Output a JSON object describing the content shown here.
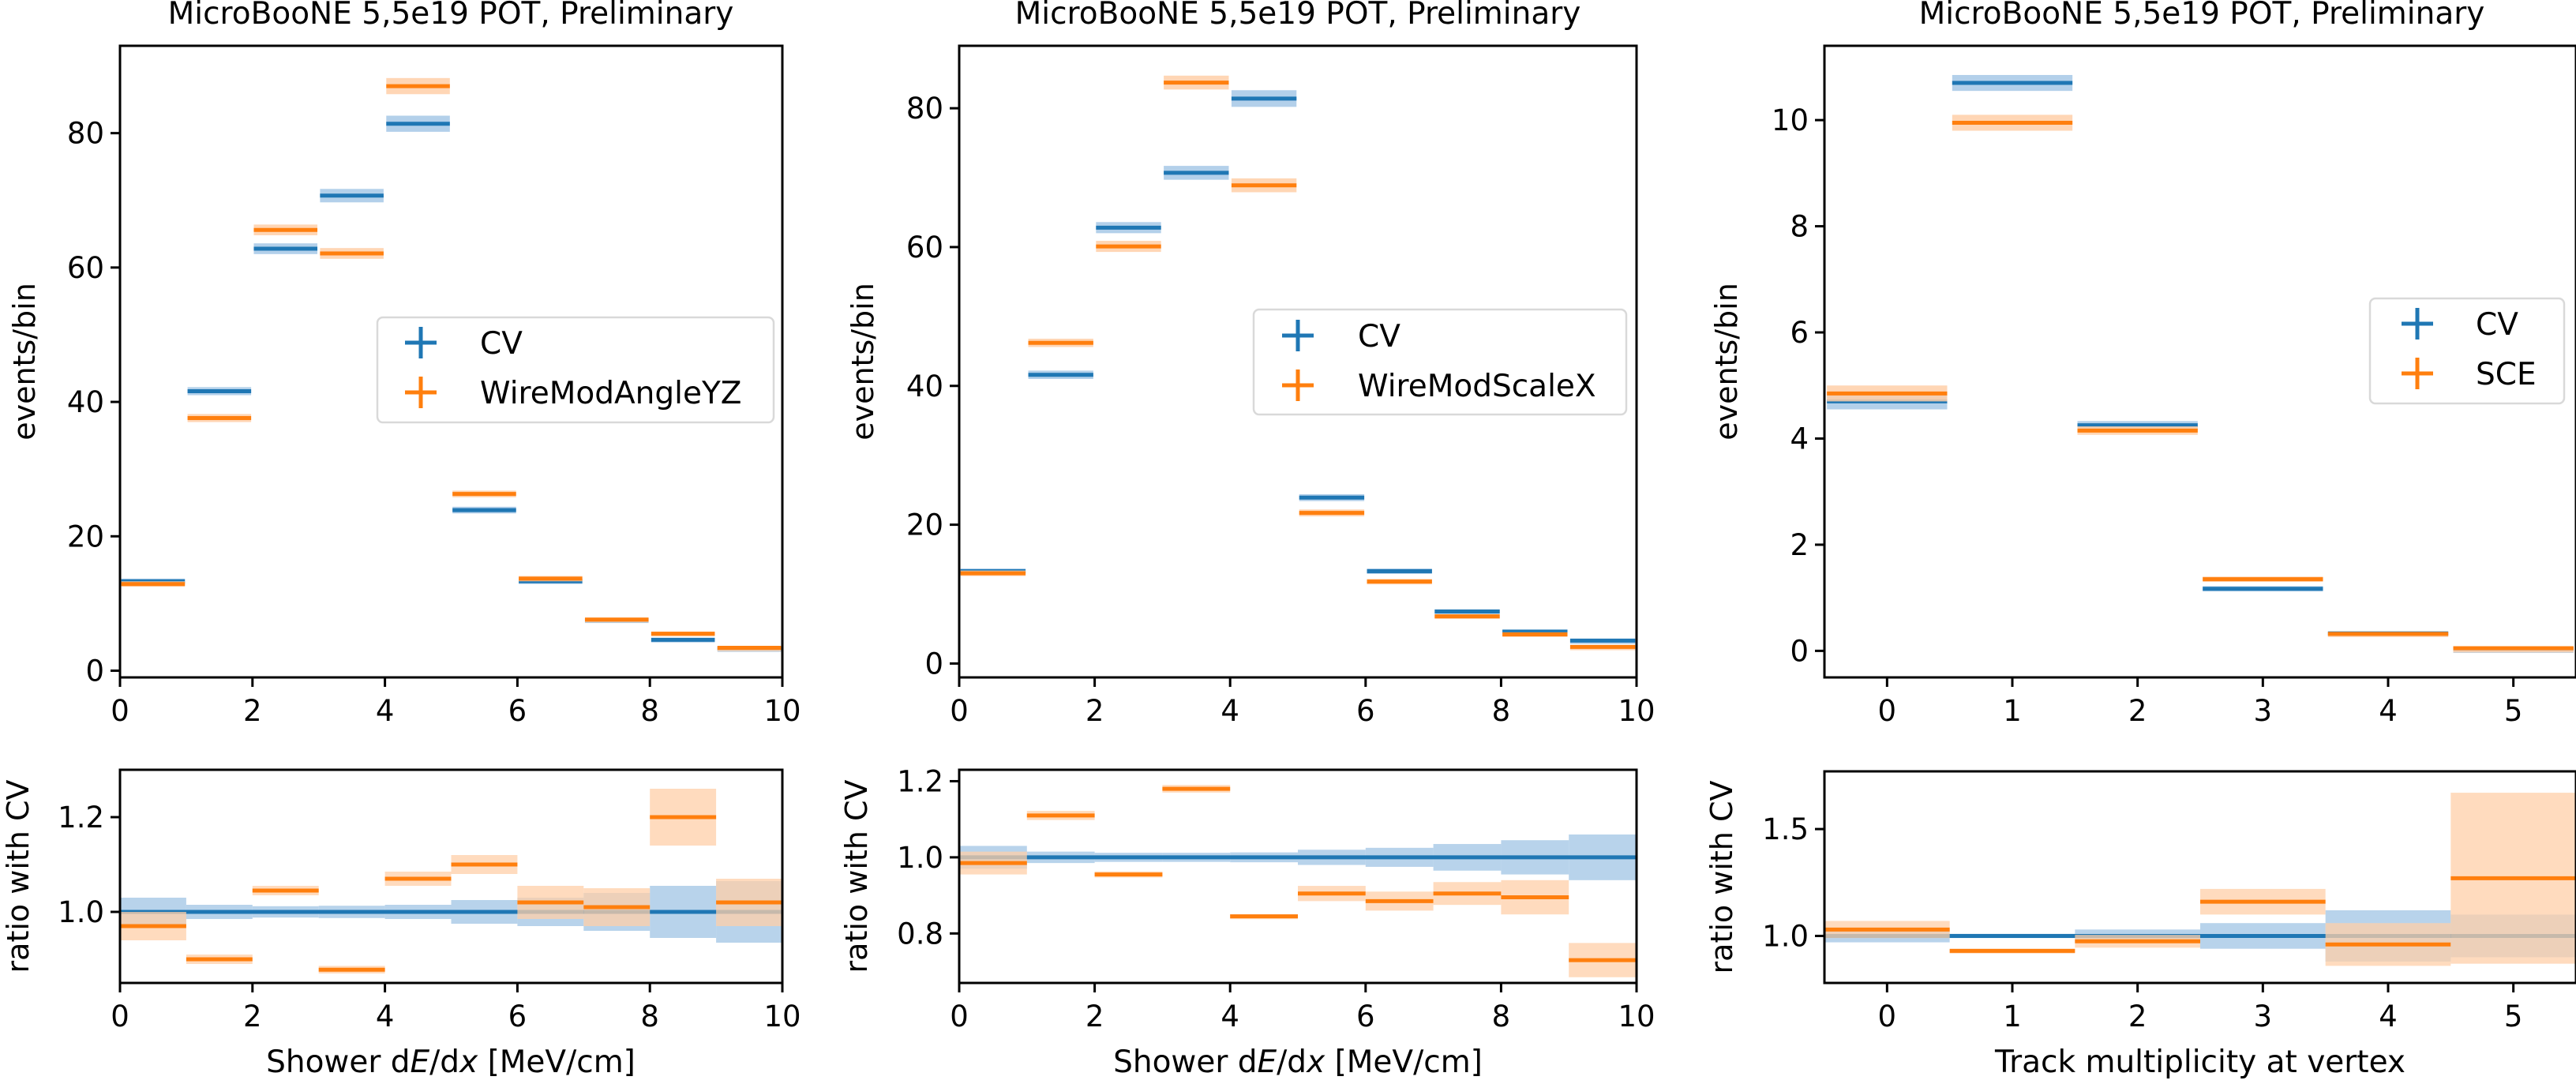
{
  "figure": {
    "panels": [
      {
        "title": "MicroBooNE 5,5e19 POT, Preliminary",
        "legend": [
          "CV",
          "WireModAngleYZ"
        ],
        "xlabel": "Shower dE/dx [MeV/cm]"
      },
      {
        "title": "MicroBooNE 5,5e19 POT, Preliminary",
        "legend": [
          "CV",
          "WireModScaleX"
        ],
        "xlabel": "Shower dE/dx [MeV/cm]"
      },
      {
        "title": "MicroBooNE 5,5e19 POT, Preliminary",
        "legend": [
          "CV",
          "SCE"
        ],
        "xlabel": "Track multiplicity at vertex"
      }
    ],
    "colors": {
      "cv": "#1f77b4",
      "variation": "#ff7f0e",
      "cv_band": "#a6c8e6",
      "variation_band": "#ffcfa8"
    }
  },
  "chart_data": [
    {
      "type": "histogram",
      "title": "MicroBooNE 5,5e19 POT, Preliminary",
      "xlabel": "Shower dE/dx [MeV/cm]",
      "ylabel": "events/bin",
      "bin_edges": [
        0,
        1,
        2,
        3,
        4,
        5,
        6,
        7,
        8,
        9,
        10
      ],
      "xlim": [
        0,
        10
      ],
      "ylim": [
        -1,
        93
      ],
      "xticks": [
        0,
        2,
        4,
        6,
        8,
        10
      ],
      "yticks": [
        0,
        20,
        40,
        60,
        80
      ],
      "legend_position": "center-right",
      "series": [
        {
          "name": "CV",
          "values": [
            13.3,
            41.6,
            62.8,
            70.7,
            81.4,
            23.9,
            13.3,
            7.5,
            4.6,
            3.3
          ],
          "errors": [
            0.4,
            0.6,
            0.8,
            1.0,
            1.2,
            0.5,
            0.4,
            0.3,
            0.3,
            0.2
          ]
        },
        {
          "name": "WireModAngleYZ",
          "values": [
            12.9,
            37.6,
            65.6,
            62.1,
            87.0,
            26.3,
            13.7,
            7.6,
            5.5,
            3.4
          ],
          "errors": [
            0.4,
            0.6,
            0.8,
            0.8,
            1.2,
            0.5,
            0.4,
            0.3,
            0.3,
            0.2
          ]
        }
      ],
      "ratio": {
        "ylabel": "ratio with CV",
        "ylim": [
          0.85,
          1.3
        ],
        "yticks": [
          1.0,
          1.2
        ],
        "cv_band": [
          0.03,
          0.015,
          0.012,
          0.013,
          0.015,
          0.025,
          0.03,
          0.04,
          0.055,
          0.065
        ],
        "values": [
          0.97,
          0.9,
          1.045,
          0.878,
          1.07,
          1.1,
          1.02,
          1.01,
          1.2,
          1.02
        ],
        "errors": [
          0.03,
          0.01,
          0.01,
          0.008,
          0.015,
          0.02,
          0.035,
          0.04,
          0.06,
          0.05
        ]
      }
    },
    {
      "type": "histogram",
      "title": "MicroBooNE 5,5e19 POT, Preliminary",
      "xlabel": "Shower dE/dx [MeV/cm]",
      "ylabel": "events/bin",
      "bin_edges": [
        0,
        1,
        2,
        3,
        4,
        5,
        6,
        7,
        8,
        9,
        10
      ],
      "xlim": [
        0,
        10
      ],
      "ylim": [
        -2,
        89
      ],
      "xticks": [
        0,
        2,
        4,
        6,
        8,
        10
      ],
      "yticks": [
        0,
        20,
        40,
        60,
        80
      ],
      "legend_position": "center-right",
      "series": [
        {
          "name": "CV",
          "values": [
            13.3,
            41.6,
            62.8,
            70.7,
            81.4,
            23.9,
            13.3,
            7.5,
            4.6,
            3.3
          ],
          "errors": [
            0.4,
            0.6,
            0.8,
            1.0,
            1.2,
            0.5,
            0.4,
            0.3,
            0.3,
            0.2
          ]
        },
        {
          "name": "WireModScaleX",
          "values": [
            13.0,
            46.2,
            60.1,
            83.7,
            68.9,
            21.7,
            11.8,
            6.8,
            4.2,
            2.4
          ],
          "errors": [
            0.4,
            0.6,
            0.8,
            1.0,
            1.0,
            0.5,
            0.4,
            0.3,
            0.3,
            0.2
          ]
        }
      ],
      "ratio": {
        "ylabel": "ratio with CV",
        "ylim": [
          0.67,
          1.23
        ],
        "yticks": [
          0.8,
          1.0,
          1.2
        ],
        "cv_band": [
          0.03,
          0.015,
          0.012,
          0.012,
          0.013,
          0.02,
          0.025,
          0.035,
          0.045,
          0.06
        ],
        "values": [
          0.985,
          1.11,
          0.955,
          1.18,
          0.845,
          0.905,
          0.885,
          0.905,
          0.895,
          0.73
        ],
        "errors": [
          0.03,
          0.012,
          0.008,
          0.01,
          0.005,
          0.02,
          0.025,
          0.03,
          0.045,
          0.045
        ]
      }
    },
    {
      "type": "histogram",
      "title": "MicroBooNE 5,5e19 POT, Preliminary",
      "xlabel": "Track multiplicity at vertex",
      "ylabel": "events/bin",
      "bin_edges": [
        -0.5,
        0.5,
        1.5,
        2.5,
        3.5,
        4.5,
        5.5
      ],
      "xlim": [
        -0.5,
        5.5
      ],
      "ylim": [
        -0.5,
        11.4
      ],
      "xticks": [
        0,
        1,
        2,
        3,
        4,
        5
      ],
      "yticks": [
        0,
        2,
        4,
        6,
        8,
        10
      ],
      "legend_position": "center-right",
      "series": [
        {
          "name": "CV",
          "values": [
            4.7,
            10.7,
            4.25,
            1.17,
            0.33,
            0.04
          ],
          "errors": [
            0.15,
            0.15,
            0.08,
            0.05,
            0.03,
            0.01
          ]
        },
        {
          "name": "SCE",
          "values": [
            4.85,
            9.95,
            4.15,
            1.35,
            0.32,
            0.05
          ],
          "errors": [
            0.15,
            0.15,
            0.08,
            0.05,
            0.03,
            0.01
          ]
        }
      ],
      "ratio": {
        "ylabel": "ratio with CV",
        "ylim": [
          0.78,
          1.77
        ],
        "yticks": [
          1.0,
          1.5
        ],
        "cv_band": [
          0.03,
          0.01,
          0.03,
          0.06,
          0.12,
          0.1
        ],
        "values": [
          1.03,
          0.93,
          0.975,
          1.16,
          0.96,
          1.27
        ],
        "errors": [
          0.04,
          0.01,
          0.03,
          0.06,
          0.1,
          0.4
        ]
      }
    }
  ]
}
